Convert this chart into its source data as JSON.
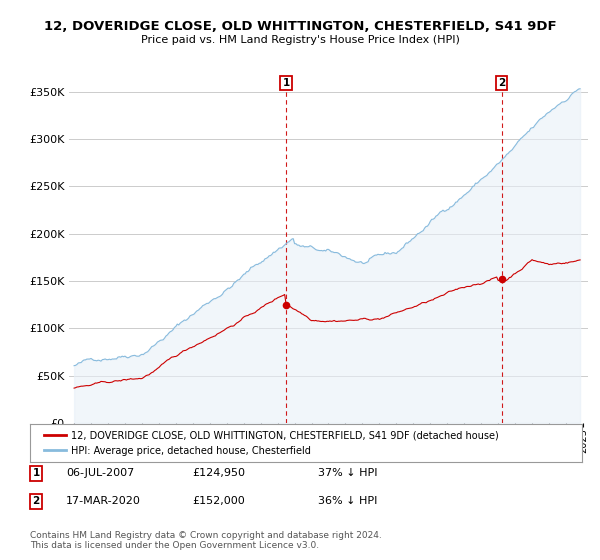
{
  "title": "12, DOVERIDGE CLOSE, OLD WHITTINGTON, CHESTERFIELD, S41 9DF",
  "subtitle": "Price paid vs. HM Land Registry's House Price Index (HPI)",
  "xlim_start": 1994.7,
  "xlim_end": 2025.3,
  "ylim": [
    0,
    370000
  ],
  "yticks": [
    0,
    50000,
    100000,
    150000,
    200000,
    250000,
    300000,
    350000
  ],
  "ytick_labels": [
    "£0",
    "£50K",
    "£100K",
    "£150K",
    "£200K",
    "£250K",
    "£300K",
    "£350K"
  ],
  "sale1_x": 2007.5,
  "sale1_y": 124950,
  "sale1_label": "1",
  "sale1_date": "06-JUL-2007",
  "sale1_price": "£124,950",
  "sale1_hpi": "37% ↓ HPI",
  "sale2_x": 2020.2,
  "sale2_y": 152000,
  "sale2_label": "2",
  "sale2_date": "17-MAR-2020",
  "sale2_price": "£152,000",
  "sale2_hpi": "36% ↓ HPI",
  "line1_color": "#cc0000",
  "line2_color": "#88bbdd",
  "bg_color": "#ffffff",
  "bg_shaded": "#e8f0f8",
  "grid_color": "#cccccc",
  "legend1": "12, DOVERIDGE CLOSE, OLD WHITTINGTON, CHESTERFIELD, S41 9DF (detached house)",
  "legend2": "HPI: Average price, detached house, Chesterfield",
  "footer": "Contains HM Land Registry data © Crown copyright and database right 2024.\nThis data is licensed under the Open Government Licence v3.0."
}
